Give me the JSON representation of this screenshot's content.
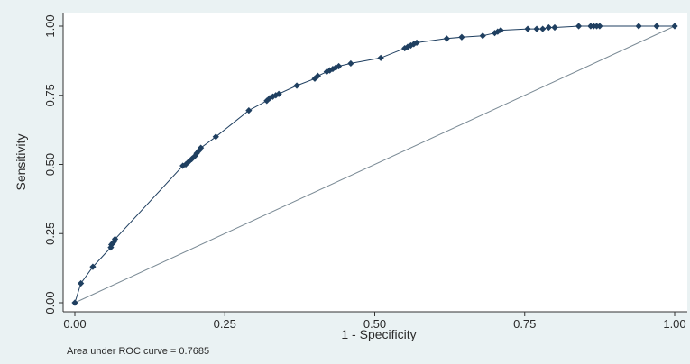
{
  "chart_data": {
    "type": "line",
    "title": "",
    "xlabel": "1 - Specificity",
    "ylabel": "Sensitivity",
    "xlim": [
      0,
      1
    ],
    "ylim": [
      0,
      1
    ],
    "x_ticks": [
      "0.00",
      "0.25",
      "0.50",
      "0.75",
      "1.00"
    ],
    "y_ticks": [
      "0.00",
      "0.25",
      "0.50",
      "0.75",
      "1.00"
    ],
    "grid": false,
    "legend": "none",
    "note": "Area under ROC curve = 0.7685",
    "colors": {
      "curve": "#1f3f60",
      "marker": "#1f3f60",
      "reference": "#7a8a95",
      "plot_bg": "#ffffff",
      "outer_bg": "#eaf2f3"
    },
    "series": [
      {
        "x": [
          0.0,
          0.01,
          0.03,
          0.06,
          0.061,
          0.063,
          0.065,
          0.067,
          0.18,
          0.185,
          0.19,
          0.195,
          0.2,
          0.203,
          0.207,
          0.21,
          0.235,
          0.29,
          0.32,
          0.325,
          0.33,
          0.335,
          0.34,
          0.37,
          0.4,
          0.405,
          0.42,
          0.425,
          0.43,
          0.435,
          0.44,
          0.46,
          0.51,
          0.55,
          0.555,
          0.56,
          0.565,
          0.57,
          0.62,
          0.645,
          0.68,
          0.7,
          0.705,
          0.71,
          0.755,
          0.77,
          0.78,
          0.79,
          0.8,
          0.84,
          0.86,
          0.865,
          0.87,
          0.875,
          0.94,
          0.97,
          1.0
        ],
        "y": [
          0.0,
          0.07,
          0.13,
          0.2,
          0.21,
          0.215,
          0.22,
          0.23,
          0.495,
          0.5,
          0.51,
          0.52,
          0.53,
          0.54,
          0.55,
          0.56,
          0.6,
          0.695,
          0.73,
          0.74,
          0.745,
          0.75,
          0.755,
          0.785,
          0.81,
          0.82,
          0.835,
          0.84,
          0.845,
          0.85,
          0.855,
          0.865,
          0.885,
          0.92,
          0.925,
          0.93,
          0.935,
          0.94,
          0.955,
          0.96,
          0.965,
          0.975,
          0.98,
          0.985,
          0.99,
          0.99,
          0.99,
          0.995,
          0.995,
          1.0,
          1.0,
          1.0,
          1.0,
          1.0,
          1.0,
          1.0,
          1.0
        ]
      }
    ],
    "reference_line": {
      "x": [
        0,
        1
      ],
      "y": [
        0,
        1
      ]
    }
  }
}
